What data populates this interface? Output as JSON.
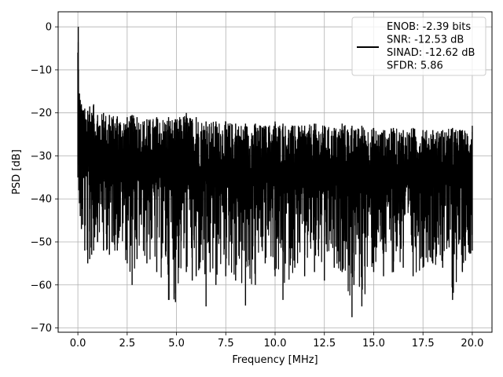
{
  "chart_data": {
    "type": "line",
    "title": "",
    "xlabel": "Frequency [MHz]",
    "ylabel": "PSD [dB]",
    "xlim": [
      -1.0,
      21.0
    ],
    "ylim": [
      -71.0,
      3.5
    ],
    "xticks": [
      0.0,
      2.5,
      5.0,
      7.5,
      10.0,
      12.5,
      15.0,
      17.5,
      20.0
    ],
    "xtick_labels": [
      "0.0",
      "2.5",
      "5.0",
      "7.5",
      "10.0",
      "12.5",
      "15.0",
      "17.5",
      "20.0"
    ],
    "yticks": [
      0,
      -10,
      -20,
      -30,
      -40,
      -50,
      -60,
      -70
    ],
    "ytick_labels": [
      "0",
      "−10",
      "−20",
      "−30",
      "−40",
      "−50",
      "−60",
      "−70"
    ],
    "grid": true,
    "legend_position": "top-right",
    "legend_entries": [
      "ENOB: -2.39 bits",
      "SNR: -12.53 dB",
      "SINAD: -12.62 dB",
      "SFDR: 5.86"
    ],
    "series": [
      {
        "color": "#000000",
        "x": [
          0.0,
          0.02,
          0.03,
          0.05,
          0.08,
          0.12,
          0.18,
          0.25,
          0.35,
          0.5,
          0.6,
          0.7,
          0.8,
          1.0,
          1.3,
          1.6,
          2.0,
          2.5,
          2.75,
          3.0,
          3.5,
          4.0,
          4.6,
          4.95,
          5.5,
          5.8,
          6.0,
          6.5,
          7.0,
          7.5,
          8.0,
          8.5,
          9.0,
          9.5,
          10.0,
          10.4,
          11.0,
          11.5,
          12.0,
          12.5,
          13.0,
          13.4,
          13.9,
          14.0,
          14.4,
          15.0,
          15.5,
          16.0,
          16.5,
          17.0,
          17.5,
          18.0,
          18.5,
          19.0,
          19.5,
          20.0
        ],
        "upper": [
          -6.0,
          0.0,
          -10.0,
          -16.0,
          -15.5,
          -17.0,
          -18.0,
          -19.5,
          -19.0,
          -19.5,
          -18.5,
          -20.0,
          -18.0,
          -20.5,
          -20.0,
          -20.5,
          -20.8,
          -21.0,
          -20.5,
          -21.0,
          -21.5,
          -21.0,
          -21.0,
          -21.5,
          -20.0,
          -21.5,
          -21.0,
          -22.0,
          -22.0,
          -22.0,
          -22.5,
          -22.5,
          -22.5,
          -23.0,
          -22.0,
          -22.5,
          -23.0,
          -23.0,
          -22.5,
          -23.0,
          -23.5,
          -22.5,
          -23.0,
          -24.0,
          -23.0,
          -23.5,
          -24.0,
          -23.5,
          -24.0,
          -23.5,
          -24.0,
          -24.0,
          -24.0,
          -23.5,
          -24.0,
          -23.0
        ],
        "lower": [
          -35.0,
          -30.0,
          -32.0,
          -38.0,
          -41.0,
          -44.0,
          -47.0,
          -46.0,
          -52.0,
          -55.0,
          -54.0,
          -53.0,
          -52.0,
          -50.0,
          -52.0,
          -53.0,
          -52.0,
          -55.0,
          -60.0,
          -54.0,
          -55.0,
          -57.0,
          -63.5,
          -64.0,
          -57.0,
          -59.0,
          -58.0,
          -65.0,
          -60.0,
          -58.0,
          -59.0,
          -64.8,
          -60.0,
          -55.0,
          -58.0,
          -63.5,
          -56.0,
          -58.0,
          -57.0,
          -59.0,
          -56.0,
          -57.0,
          -67.5,
          -60.0,
          -65.0,
          -57.0,
          -58.0,
          -57.0,
          -56.0,
          -58.0,
          -56.0,
          -55.0,
          -56.0,
          -63.5,
          -57.0,
          -52.0
        ],
        "mean": [
          -20.0,
          -10.0,
          -22.0,
          -26.0,
          -28.0,
          -29.0,
          -30.0,
          -31.0,
          -31.5,
          -32.0,
          -32.5,
          -32.5,
          -33.0,
          -33.5,
          -33.5,
          -34.0,
          -34.0,
          -34.5,
          -34.5,
          -34.5,
          -35.0,
          -35.0,
          -35.0,
          -35.0,
          -35.0,
          -35.5,
          -35.5,
          -35.5,
          -35.5,
          -36.0,
          -36.0,
          -36.0,
          -36.0,
          -36.0,
          -36.0,
          -36.0,
          -36.0,
          -36.5,
          -36.0,
          -36.0,
          -36.5,
          -36.5,
          -36.5,
          -36.5,
          -36.5,
          -36.5,
          -36.5,
          -36.5,
          -36.5,
          -36.5,
          -36.5,
          -36.5,
          -36.5,
          -36.5,
          -36.5,
          -36.0
        ]
      }
    ]
  }
}
